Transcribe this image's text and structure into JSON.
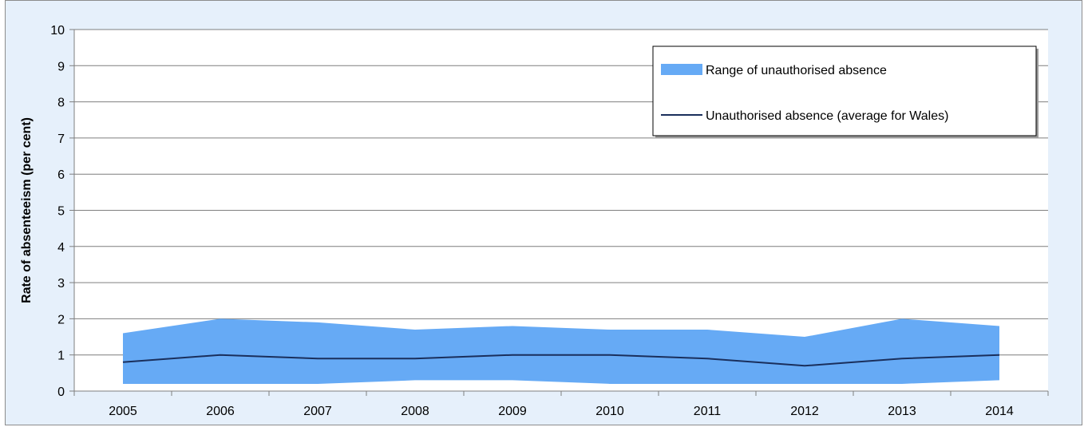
{
  "chart_data": {
    "type": "area",
    "title": "",
    "xlabel": "",
    "ylabel": "Rate of absenteeism (per cent)",
    "categories": [
      "2005",
      "2006",
      "2007",
      "2008",
      "2009",
      "2010",
      "2011",
      "2012",
      "2013",
      "2014"
    ],
    "ylim": [
      0,
      10
    ],
    "yticks": [
      "0",
      "1",
      "2",
      "3",
      "4",
      "5",
      "6",
      "7",
      "8",
      "9",
      "10"
    ],
    "grid": true,
    "legend_position": "top-right",
    "series": [
      {
        "name": "Range of unauthorised absence",
        "kind": "range",
        "color": "#66aaf5",
        "low": [
          0.2,
          0.2,
          0.2,
          0.3,
          0.3,
          0.2,
          0.2,
          0.2,
          0.2,
          0.3
        ],
        "high": [
          1.6,
          2.0,
          1.9,
          1.7,
          1.8,
          1.7,
          1.7,
          1.5,
          2.0,
          1.8
        ]
      },
      {
        "name": "Unauthorised absence (average for Wales)",
        "kind": "line",
        "color": "#1a2f5c",
        "values": [
          0.8,
          1.0,
          0.9,
          0.9,
          1.0,
          1.0,
          0.9,
          0.7,
          0.9,
          1.0
        ]
      }
    ],
    "colors": {
      "background": "#e6f0fb",
      "plot_background": "#ffffff",
      "gridline": "#7f7f7f",
      "axis": "#7f7f7f"
    }
  }
}
